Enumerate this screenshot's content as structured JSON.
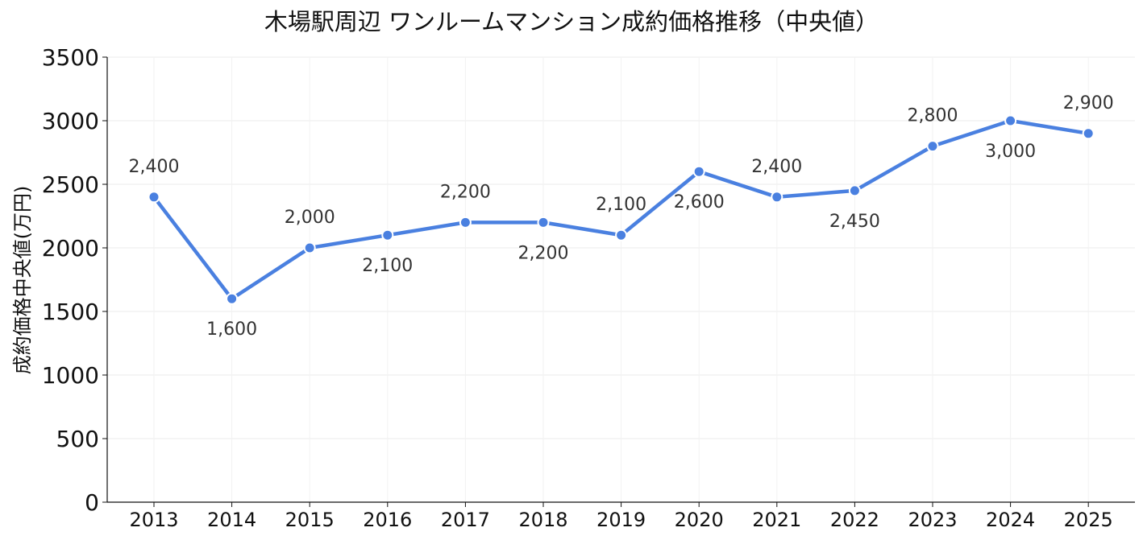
{
  "chart_data": {
    "type": "line",
    "title": "木場駅周辺 ワンルームマンション成約価格推移（中央値）",
    "xlabel": "",
    "ylabel": "成約価格中央値(万円)",
    "categories": [
      "2013",
      "2014",
      "2015",
      "2016",
      "2017",
      "2018",
      "2019",
      "2020",
      "2021",
      "2022",
      "2023",
      "2024",
      "2025"
    ],
    "series": [
      {
        "values": [
          2400,
          1600,
          2000,
          2100,
          2200,
          2200,
          2100,
          2600,
          2400,
          2450,
          2800,
          3000,
          2900
        ],
        "data_labels": [
          "2,400",
          "1,600",
          "2,000",
          "2,100",
          "2,200",
          "2,200",
          "2,100",
          "2,600",
          "2,400",
          "2,450",
          "2,800",
          "3,000",
          "2,900"
        ],
        "label_positions": [
          "above",
          "below",
          "above",
          "below",
          "above",
          "below",
          "above",
          "below",
          "above",
          "below",
          "above",
          "below",
          "above"
        ],
        "color": "#4a80e0"
      }
    ],
    "ylim": [
      0,
      3500
    ],
    "yticks": [
      "0",
      "500",
      "1000",
      "1500",
      "2000",
      "2500",
      "3000",
      "3500"
    ],
    "grid": true
  }
}
